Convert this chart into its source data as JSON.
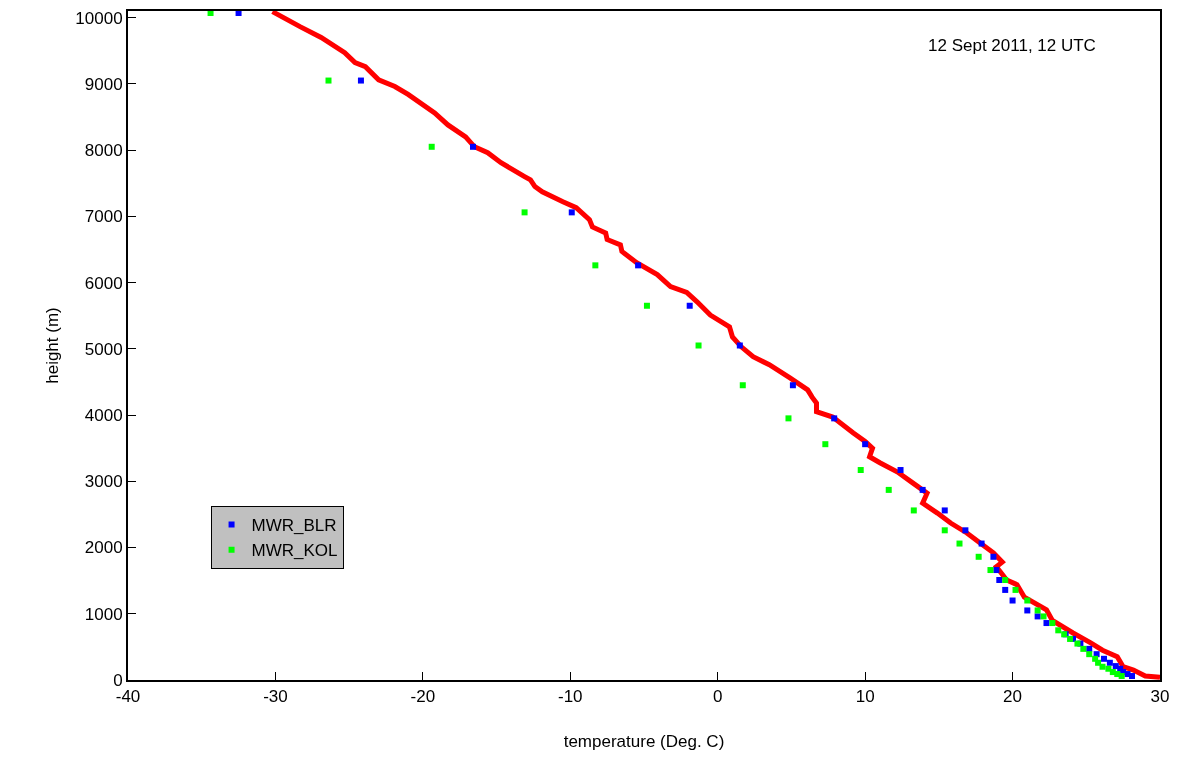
{
  "chart_data": {
    "type": "scatter",
    "xlabel": "temperature (Deg. C)",
    "ylabel": "height (m)",
    "annotations": [
      "12 Sept 2011, 12 UTC"
    ],
    "xlim": [
      -40,
      30
    ],
    "xticks": [
      -40,
      -30,
      -20,
      -10,
      0,
      10,
      20,
      30
    ],
    "ylim": [
      0,
      10100
    ],
    "yticks": [
      0,
      1000,
      2000,
      3000,
      4000,
      5000,
      6000,
      7000,
      8000,
      9000,
      10000
    ],
    "grid": false,
    "legend": "bottom left",
    "marker": "square",
    "line_style": "solid",
    "series": [
      {
        "type": "line",
        "marker": "none",
        "color": "#ff0000",
        "x": [
          -30.2,
          -28.3,
          -26.9,
          -25.3,
          -24.6,
          -23.9,
          -23.0,
          -21.9,
          -21.0,
          -19.2,
          -18.3,
          -17.1,
          -16.5,
          -15.6,
          -14.7,
          -13.1,
          -12.7,
          -12.4,
          -11.9,
          -10.5,
          -9.6,
          -8.7,
          -8.5,
          -7.6,
          -7.5,
          -6.6,
          -6.5,
          -5.5,
          -4.1,
          -3.2,
          -2.1,
          -1.4,
          -0.5,
          0.8,
          1.0,
          1.6,
          2.4,
          3.5,
          4.9,
          6.1,
          6.4,
          6.7,
          6.7,
          7.8,
          9.2,
          10.0,
          10.5,
          10.3,
          11.0,
          12.2,
          13.2,
          14.2,
          13.9,
          14.9,
          15.8,
          16.9,
          17.8,
          18.7,
          19.3,
          18.9,
          19.6,
          20.3,
          20.8,
          22.3,
          22.7,
          24.1,
          25.3,
          26.1,
          27.1,
          27.5,
          28.2,
          29.0,
          30.0
        ],
        "values": [
          10090,
          9860,
          9700,
          9470,
          9320,
          9260,
          9060,
          8960,
          8840,
          8560,
          8380,
          8200,
          8050,
          7960,
          7810,
          7600,
          7550,
          7450,
          7370,
          7220,
          7130,
          6950,
          6840,
          6750,
          6650,
          6570,
          6470,
          6300,
          6120,
          5940,
          5850,
          5710,
          5510,
          5330,
          5180,
          5030,
          4880,
          4760,
          4560,
          4380,
          4270,
          4180,
          4050,
          3970,
          3730,
          3600,
          3500,
          3370,
          3280,
          3140,
          2980,
          2820,
          2670,
          2520,
          2370,
          2220,
          2070,
          1920,
          1780,
          1710,
          1510,
          1440,
          1250,
          1060,
          900,
          710,
          560,
          450,
          350,
          200,
          150,
          60,
          40
        ]
      },
      {
        "name": "MWR_BLR",
        "color": "#0000ff",
        "x": [
          -32.5,
          -24.2,
          -16.6,
          -9.9,
          -5.4,
          -1.9,
          1.5,
          5.1,
          7.9,
          10.0,
          12.4,
          13.9,
          15.4,
          16.8,
          17.9,
          18.7,
          18.9,
          19.1,
          19.5,
          20.0,
          21.0,
          21.7,
          22.3,
          23.6,
          24.1,
          24.6,
          25.2,
          25.7,
          26.2,
          26.6,
          27.0,
          27.3,
          27.5,
          27.8,
          28.1
        ],
        "values": [
          10070,
          9050,
          8050,
          7060,
          6260,
          5650,
          5050,
          4450,
          3950,
          3560,
          3170,
          2870,
          2560,
          2260,
          2060,
          1860,
          1660,
          1510,
          1360,
          1200,
          1050,
          960,
          860,
          690,
          620,
          550,
          470,
          390,
          320,
          260,
          210,
          170,
          120,
          90,
          60
        ]
      },
      {
        "name": "MWR_KOL",
        "color": "#00ff00",
        "x": [
          -34.4,
          -26.4,
          -19.4,
          -13.1,
          -8.3,
          -4.8,
          -1.3,
          1.7,
          4.8,
          7.3,
          9.7,
          11.6,
          13.3,
          15.4,
          16.4,
          17.7,
          18.5,
          19.5,
          20.2,
          21.0,
          21.7,
          22.1,
          22.7,
          23.1,
          23.5,
          23.9,
          24.4,
          24.8,
          25.2,
          25.6,
          25.8,
          26.1,
          26.5,
          26.8,
          27.1,
          27.4
        ],
        "values": [
          10070,
          9050,
          8050,
          7060,
          6260,
          5650,
          5050,
          4450,
          3950,
          3560,
          3170,
          2870,
          2560,
          2260,
          2060,
          1860,
          1660,
          1510,
          1360,
          1200,
          1050,
          960,
          860,
          750,
          690,
          620,
          550,
          470,
          390,
          320,
          260,
          200,
          170,
          120,
          90,
          60
        ]
      }
    ]
  }
}
